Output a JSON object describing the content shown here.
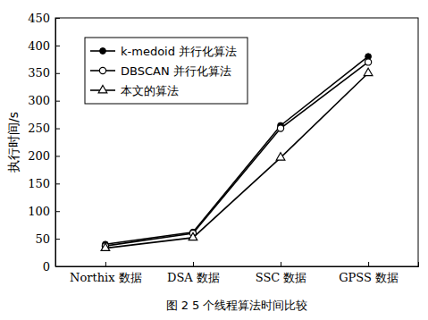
{
  "chart_data": {
    "type": "line",
    "title": "图 2  5 个线程算法时间比较",
    "y_label": "执行时间/s",
    "categories": [
      "Northix 数据",
      "DSA 数据",
      "SSC 数据",
      "GPSS 数据"
    ],
    "series": [
      {
        "name": "k-medoid 并行化算法",
        "color": "#000000",
        "marker": "dot",
        "values": [
          40,
          62,
          255,
          380
        ]
      },
      {
        "name": "DBSCAN 并行化算法",
        "color": "#000000",
        "marker": "circle",
        "values": [
          37,
          60,
          250,
          370
        ]
      },
      {
        "name": "本文的算法",
        "color": "#000000",
        "marker": "triangle",
        "values": [
          33,
          52,
          197,
          350
        ]
      }
    ],
    "ylim": [
      0,
      450
    ],
    "yticks": [
      0,
      50,
      100,
      150,
      200,
      250,
      300,
      350,
      400,
      450
    ],
    "grid": false,
    "legend": "upper-left"
  }
}
